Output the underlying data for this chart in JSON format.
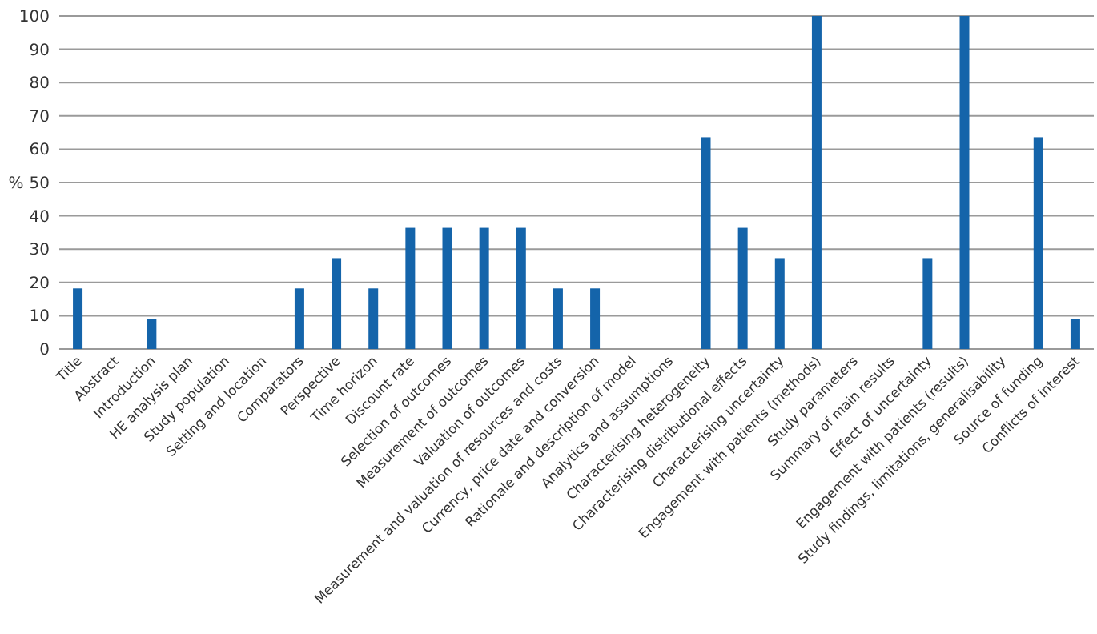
{
  "chart_data": {
    "type": "bar",
    "ylabel": "%",
    "categories": [
      "Title",
      "Abstract",
      "Introduction",
      "HE analysis plan",
      "Study population",
      "Setting and location",
      "Comparators",
      "Perspective",
      "Time horizon",
      "Discount rate",
      "Selection of outcomes",
      "Measurement of outcomes",
      "Valuation of outcomes",
      "Measurement and valuation of resources and costs",
      "Currency, price date and conversion",
      "Rationale and description of model",
      "Analytics and assumptions",
      "Characterising heterogeneity",
      "Characterising distributional effects",
      "Characterising uncertainty",
      "Engagement with patients (methods)",
      "Study parameters",
      "Summary of main results",
      "Effect of uncertainty",
      "Engagement with patients (results)",
      "Study findings, limitations, generalisability",
      "Source of funding",
      "Conflicts of interest"
    ],
    "values": [
      18.2,
      0,
      9.1,
      0,
      0,
      0,
      18.2,
      27.3,
      18.2,
      36.4,
      36.4,
      36.4,
      36.4,
      18.2,
      18.2,
      0,
      0,
      63.6,
      36.4,
      27.3,
      100,
      0,
      0,
      27.3,
      100,
      0,
      63.6,
      9.1
    ],
    "color": "#1464aa",
    "ylim": [
      0,
      100
    ],
    "yticks": [
      0,
      10,
      20,
      30,
      40,
      50,
      60,
      70,
      80,
      90,
      100
    ],
    "grid": "y"
  }
}
